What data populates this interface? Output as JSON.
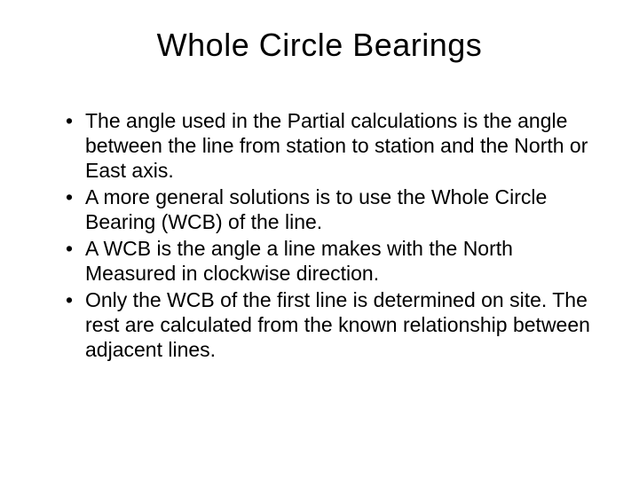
{
  "slide": {
    "title": "Whole Circle Bearings",
    "bullets": [
      "The angle used in the Partial calculations is the angle between the line from station to station and the North or East axis.",
      "A more general solutions is to use the Whole Circle Bearing (WCB) of the line.",
      "A WCB is the angle a line makes with the North Measured in  clockwise direction.",
      "Only the WCB of the first line is determined on site.  The rest are calculated from the known relationship between adjacent lines."
    ]
  },
  "style": {
    "background_color": "#ffffff",
    "text_color": "#000000",
    "title_fontsize": 36,
    "title_weight": 400,
    "body_fontsize": 23,
    "font_family": "Arial",
    "slide_width": 720,
    "slide_height": 540
  }
}
